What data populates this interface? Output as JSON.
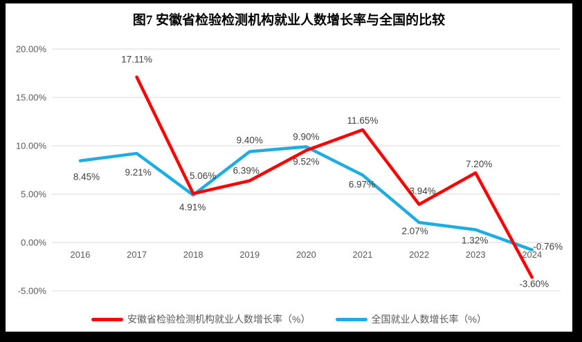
{
  "chart_data": {
    "type": "line",
    "title": "图7 安徽省检验检测机构就业人数增长率与全国的比较",
    "categories": [
      "2016",
      "2017",
      "2018",
      "2019",
      "2020",
      "2021",
      "2022",
      "2023",
      "2024"
    ],
    "series": [
      {
        "name": "安徽省检验检测机构就业人数增长率（%）",
        "color": "#FF0000",
        "values": [
          null,
          17.11,
          5.06,
          6.39,
          9.52,
          11.65,
          3.94,
          7.2,
          -3.6
        ],
        "point_labels": [
          null,
          "17.11%",
          "5.06%",
          "6.39%",
          "9.52%",
          "11.65%",
          "3.94%",
          "7.20%",
          "-3.60%"
        ],
        "label_offsets": [
          null,
          [
            0,
            -21
          ],
          [
            14,
            -21
          ],
          [
            -5,
            -10
          ],
          [
            0,
            21
          ],
          [
            0,
            -9
          ],
          [
            5,
            -15
          ],
          [
            5,
            -8
          ],
          [
            3,
            14
          ]
        ]
      },
      {
        "name": "全国就业人数增长率（%）",
        "color": "#1CADE4",
        "values": [
          8.45,
          9.21,
          4.91,
          9.4,
          9.9,
          6.97,
          2.07,
          1.32,
          -0.76
        ],
        "point_labels": [
          "8.45%",
          "9.21%",
          "4.91%",
          "9.40%",
          "9.90%",
          "6.97%",
          "2.07%",
          "1.32%",
          "-0.76%"
        ],
        "label_offsets": [
          [
            9,
            28
          ],
          [
            2,
            32
          ],
          [
            -1,
            22
          ],
          [
            0,
            -12
          ],
          [
            0,
            -10
          ],
          [
            -1,
            18
          ],
          [
            -6,
            17
          ],
          [
            -1,
            20
          ],
          [
            23,
            0
          ]
        ]
      }
    ],
    "ylim": [
      -5,
      20
    ],
    "ytick_values": [
      20,
      15,
      10,
      5,
      0,
      -5
    ],
    "ytick_labels": [
      "20.00%",
      "15.00%",
      "10.00%",
      "5.00%",
      "0.00%",
      "-5.00%"
    ],
    "grid": true,
    "legend_position": "bottom",
    "colors": {
      "gridline": "#D9D9D9",
      "axis_text": "#595959",
      "data_label": "#404040",
      "title": "#000000",
      "frame": "#000000",
      "background": "#FFFFFF"
    }
  }
}
